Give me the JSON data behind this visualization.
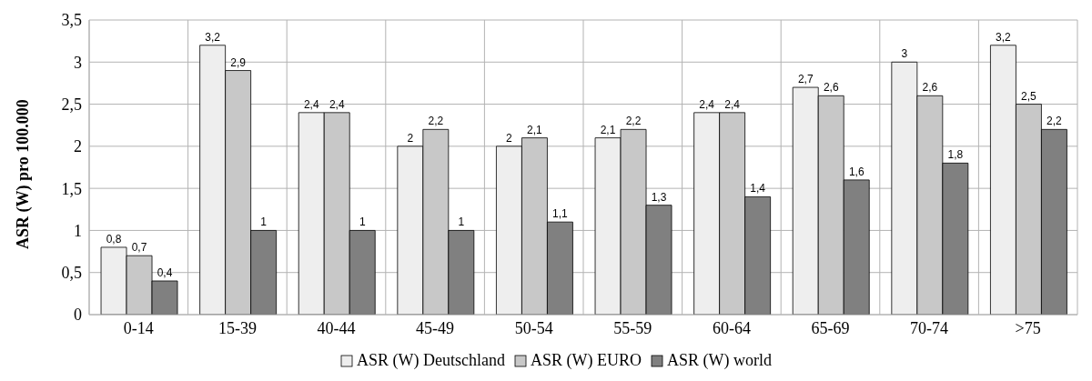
{
  "chart_data": {
    "type": "bar",
    "ylabel": "ASR (W) pro 100.000",
    "categories": [
      "0-14",
      "15-39",
      "40-44",
      "45-49",
      "50-54",
      "55-59",
      "60-64",
      "65-69",
      "70-74",
      ">75"
    ],
    "series": [
      {
        "name": "ASR (W) Deutschland",
        "color": "#eeeeee",
        "values": [
          0.8,
          3.2,
          2.4,
          2,
          2,
          2.1,
          2.4,
          2.7,
          3,
          3.2
        ],
        "value_labels": [
          "0,8",
          "3,2",
          "2,4",
          "2",
          "2",
          "2,1",
          "2,4",
          "2,7",
          "3",
          "3,2"
        ]
      },
      {
        "name": "ASR (W) EURO",
        "color": "#c8c8c8",
        "values": [
          0.7,
          2.9,
          2.4,
          2.2,
          2.1,
          2.2,
          2.4,
          2.6,
          2.6,
          2.5
        ],
        "value_labels": [
          "0,7",
          "2,9",
          "2,4",
          "2,2",
          "2,1",
          "2,2",
          "2,4",
          "2,6",
          "2,6",
          "2,5"
        ]
      },
      {
        "name": "ASR (W) world",
        "color": "#808080",
        "values": [
          0.4,
          1,
          1,
          1,
          1.1,
          1.3,
          1.4,
          1.6,
          1.8,
          2.2
        ],
        "value_labels": [
          "0,4",
          "1",
          "1",
          "1",
          "1,1",
          "1,3",
          "1,4",
          "1,6",
          "1,8",
          "2,2"
        ]
      }
    ],
    "ylim": [
      0,
      3.5
    ],
    "yticks": [
      0,
      {
        "value": 0.5,
        "label": "0,5"
      },
      1,
      {
        "value": 1.5,
        "label": "1,5"
      },
      2,
      {
        "value": 2.5,
        "label": "2,5"
      },
      3,
      {
        "value": 3.5,
        "label": "3,5"
      }
    ],
    "grid": true,
    "legend": "bottom"
  }
}
